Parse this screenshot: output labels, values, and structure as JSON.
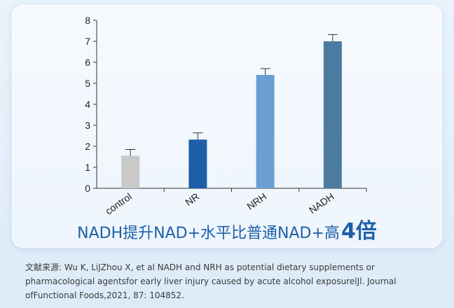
{
  "chart_data": {
    "type": "bar",
    "categories": [
      "control",
      "NR",
      "NRH",
      "NADH"
    ],
    "values": [
      1.55,
      2.32,
      5.4,
      7.0
    ],
    "errors": [
      0.3,
      0.32,
      0.3,
      0.32
    ],
    "colors": [
      "#c9c9c9",
      "#1d5ea9",
      "#6b9fd2",
      "#4b7ba0"
    ],
    "ylim": [
      0,
      8
    ],
    "yticks": [
      "0",
      "1",
      "2",
      "3",
      "4",
      "5",
      "6",
      "7",
      "8"
    ],
    "grid": false,
    "title": "",
    "xlabel": "",
    "ylabel": ""
  },
  "headline": {
    "text": "NADH提升NAD+水平比普通NAD+高",
    "emphasis": "4倍"
  },
  "citation": {
    "line1": "文献来源: Wu K, LiJZhou X, et al NADH and NRH as potential dietary supplements or",
    "line2": "pharmacological agentsfor early liver injury caused by acute alcohol exposurelJl. Journal",
    "line3": "ofFunctional Foods,2021, 87: 104852."
  }
}
